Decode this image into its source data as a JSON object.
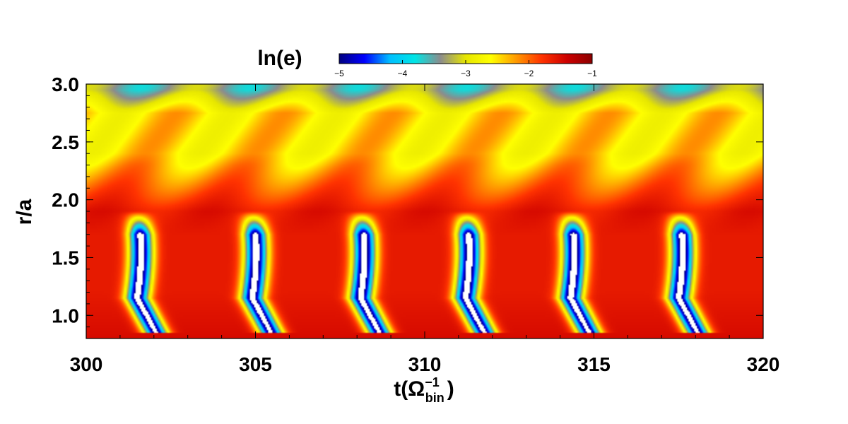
{
  "chart_data": {
    "type": "heatmap",
    "title": "",
    "xlabel": "t(Ω",
    "xlabel_sup": "−1",
    "xlabel_sub": "bin",
    "xlabel_close": ")",
    "ylabel": "r/a",
    "xlim": [
      300,
      320
    ],
    "ylim": [
      0.8,
      3.0
    ],
    "x_ticks": [
      300,
      305,
      310,
      315,
      320
    ],
    "x_tick_labels": [
      "300",
      "305",
      "310",
      "315",
      "320"
    ],
    "y_ticks": [
      1.0,
      1.5,
      2.0,
      2.5,
      3.0
    ],
    "y_tick_labels": [
      "1.0",
      "1.5",
      "2.0",
      "2.5",
      "3.0"
    ],
    "colorbar": {
      "label": "ln(e)",
      "range": [
        -5,
        -1
      ],
      "ticks": [
        -5,
        -4,
        -3,
        -2,
        -1
      ],
      "tick_labels": [
        "−5",
        "−4",
        "−3",
        "−2",
        "−1"
      ],
      "colormap": [
        "#000080",
        "#0000ff",
        "#00bfff",
        "#00e5e5",
        "#8c8c8c",
        "#e6e600",
        "#ffff00",
        "#ff9900",
        "#ff3300",
        "#cc0000",
        "#8b0000"
      ]
    },
    "description_values": {
      "background_ln_e": -2.6,
      "outer_band_ln_e": -3.4,
      "low_eccentricity_streak_centers_t": [
        301.3,
        304.7,
        307.9,
        311.0,
        314.1,
        317.3
      ],
      "low_eccentricity_min_ln_e": -5,
      "high_eccentricity_max_ln_e": -1
    }
  }
}
